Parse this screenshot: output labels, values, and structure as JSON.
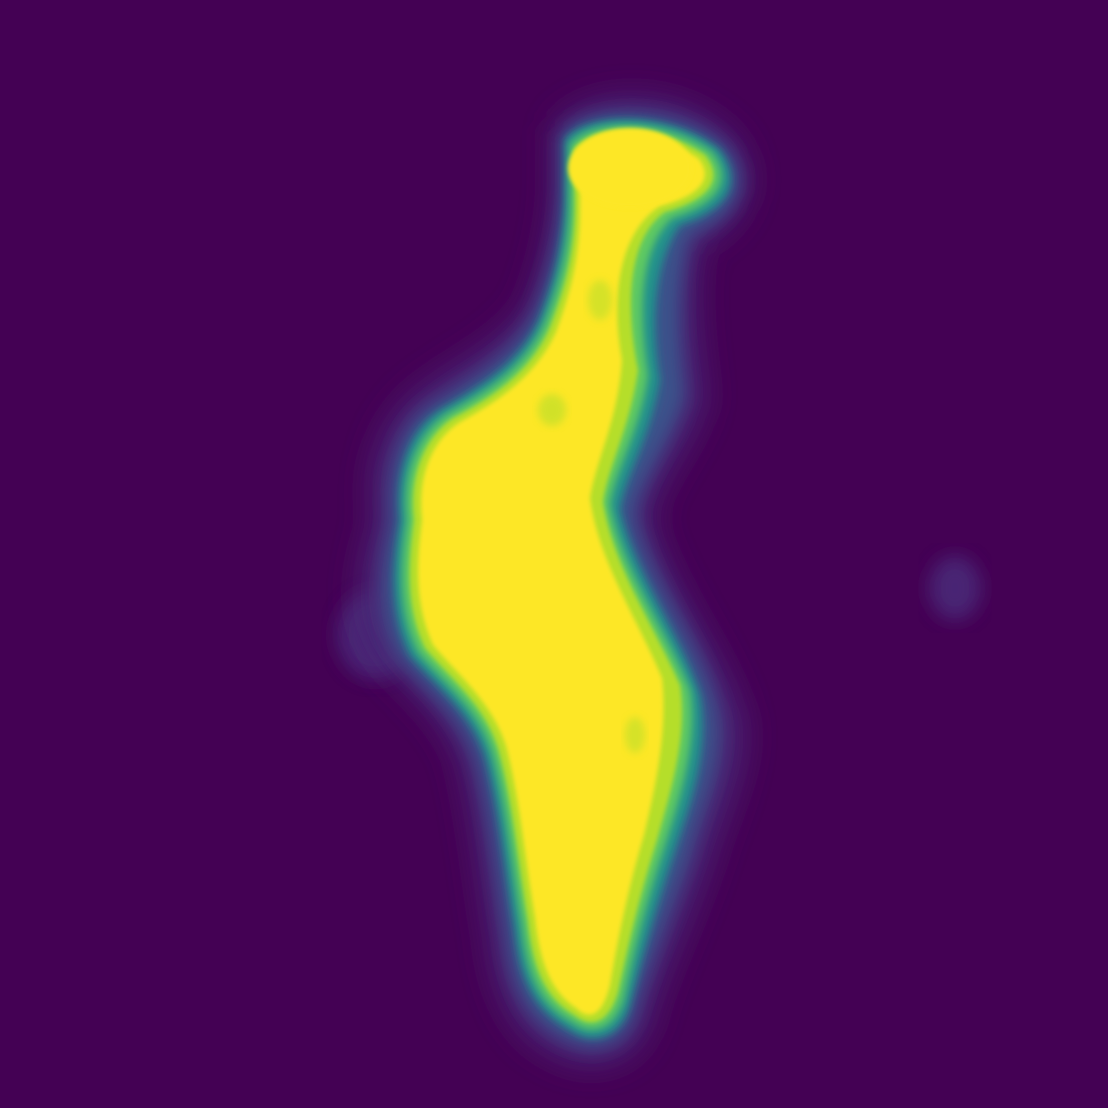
{
  "image": {
    "kind": "heatmap-mask",
    "colormap": "viridis",
    "colors": {
      "background": "#440154",
      "halo_outer": "#482576",
      "halo_mid": "#3b528b",
      "edge_teal": "#21918c",
      "edge_green": "#5ec962",
      "edge_lime": "#b5de2b",
      "core": "#fde725"
    },
    "regions": [
      "main-blob",
      "head-lobe",
      "left-speck",
      "right-speck"
    ]
  }
}
